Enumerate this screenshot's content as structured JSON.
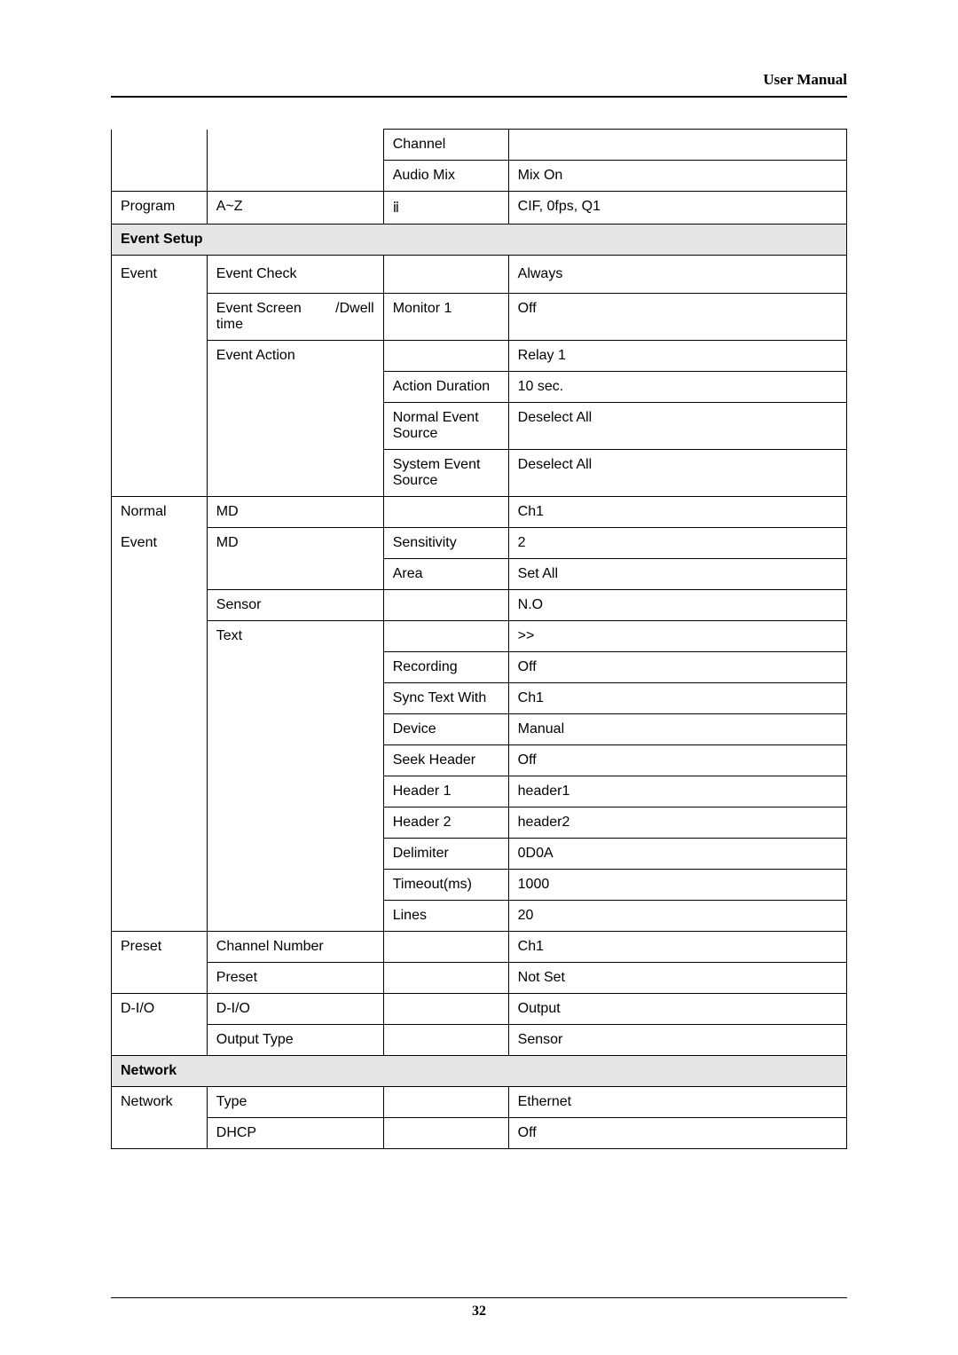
{
  "header": {
    "title": "User Manual"
  },
  "table": {
    "rows": [
      {
        "c1": "",
        "c2": "",
        "c3": "Channel",
        "c4": "",
        "c1_class": "no-top no-bottom",
        "c2_class": "no-top no-bottom"
      },
      {
        "c1": "",
        "c2": "",
        "c3": "Audio Mix",
        "c4": "Mix On",
        "c1_class": "no-top",
        "c2_class": "no-top"
      },
      {
        "c1": "Program",
        "c2": "A~Z",
        "c3": "ⅱ",
        "c4": "CIF, 0fps, Q1"
      }
    ],
    "section1": {
      "label": "Event Setup"
    },
    "rows2": [
      {
        "c1": "Event",
        "c2": "Event Check",
        "c3": "",
        "c4": "Always",
        "c1_class": "no-bottom taller",
        "c2_class": "taller",
        "c3_class": "taller",
        "c4_class": "taller"
      },
      {
        "c1": "",
        "c2": "Event Screen /Dwell time",
        "c3": "Monitor 1",
        "c4": "Off",
        "c1_class": "no-top no-bottom",
        "c2_class": "justify-between"
      },
      {
        "c1": "",
        "c2": "Event Action",
        "c3": "",
        "c4": "Relay 1",
        "c1_class": "no-top no-bottom",
        "c2_class": "no-bottom"
      },
      {
        "c1": "",
        "c2": "",
        "c3": "Action Duration",
        "c4": "10 sec.",
        "c1_class": "no-top no-bottom",
        "c2_class": "no-top no-bottom"
      },
      {
        "c1": "",
        "c2": "",
        "c3": "Normal Event Source",
        "c4": "Deselect All",
        "c1_class": "no-top no-bottom",
        "c2_class": "no-top no-bottom"
      },
      {
        "c1": "",
        "c2": "",
        "c3": "System Event Source",
        "c4": "Deselect All",
        "c1_class": "no-top",
        "c2_class": "no-top"
      },
      {
        "c1": "Normal",
        "c2": "MD",
        "c3": "",
        "c4": "Ch1",
        "c1_class": "no-bottom"
      },
      {
        "c1": "Event",
        "c2": "MD",
        "c3": "Sensitivity",
        "c4": "2",
        "c1_class": "no-top no-bottom",
        "c2_class": "no-bottom"
      },
      {
        "c1": "",
        "c2": "",
        "c3": "Area",
        "c4": "Set All",
        "c1_class": "no-top no-bottom",
        "c2_class": "no-top"
      },
      {
        "c1": "",
        "c2": "Sensor",
        "c3": "",
        "c4": "N.O",
        "c1_class": "no-top no-bottom"
      },
      {
        "c1": "",
        "c2": "Text",
        "c3": "",
        "c4": ">>",
        "c1_class": "no-top no-bottom",
        "c2_class": "no-bottom"
      },
      {
        "c1": "",
        "c2": "",
        "c3": "Recording",
        "c4": "Off",
        "c1_class": "no-top no-bottom",
        "c2_class": "no-top no-bottom"
      },
      {
        "c1": "",
        "c2": "",
        "c3": "Sync Text With",
        "c4": "Ch1",
        "c1_class": "no-top no-bottom",
        "c2_class": "no-top no-bottom",
        "c3_class": "justify-between-first"
      },
      {
        "c1": "",
        "c2": "",
        "c3": "Device",
        "c4": "Manual",
        "c1_class": "no-top no-bottom",
        "c2_class": "no-top no-bottom"
      },
      {
        "c1": "",
        "c2": "",
        "c3": "Seek Header",
        "c4": "Off",
        "c1_class": "no-top no-bottom",
        "c2_class": "no-top no-bottom"
      },
      {
        "c1": "",
        "c2": "",
        "c3": "Header 1",
        "c4": "header1",
        "c1_class": "no-top no-bottom",
        "c2_class": "no-top no-bottom"
      },
      {
        "c1": "",
        "c2": "",
        "c3": "Header 2",
        "c4": "header2",
        "c1_class": "no-top no-bottom",
        "c2_class": "no-top no-bottom"
      },
      {
        "c1": "",
        "c2": "",
        "c3": "Delimiter",
        "c4": "0D0A",
        "c1_class": "no-top no-bottom",
        "c2_class": "no-top no-bottom"
      },
      {
        "c1": "",
        "c2": "",
        "c3": "Timeout(ms)",
        "c4": "1000",
        "c1_class": "no-top no-bottom",
        "c2_class": "no-top no-bottom"
      },
      {
        "c1": "",
        "c2": "",
        "c3": "Lines",
        "c4": "20",
        "c1_class": "no-top",
        "c2_class": "no-top"
      },
      {
        "c1": "Preset",
        "c2": "Channel Number",
        "c3": "",
        "c4": "Ch1",
        "c1_class": "no-bottom"
      },
      {
        "c1": "",
        "c2": "Preset",
        "c3": "",
        "c4": "Not Set",
        "c1_class": "no-top"
      },
      {
        "c1": "D-I/O",
        "c2": "D-I/O",
        "c3": "",
        "c4": "Output",
        "c1_class": "no-bottom"
      },
      {
        "c1": "",
        "c2": "Output Type",
        "c3": "",
        "c4": "Sensor",
        "c1_class": "no-top"
      }
    ],
    "section2": {
      "label": "Network"
    },
    "rows3": [
      {
        "c1": "Network",
        "c2": "Type",
        "c3": "",
        "c4": "Ethernet",
        "c1_class": "no-bottom"
      },
      {
        "c1": "",
        "c2": "DHCP",
        "c3": "",
        "c4": "Off",
        "c1_class": "no-top"
      }
    ]
  },
  "footer": {
    "page": "32"
  },
  "colors": {
    "section_bg": "#e6e6e6",
    "text": "#000000",
    "border": "#000000",
    "background": "#ffffff"
  }
}
